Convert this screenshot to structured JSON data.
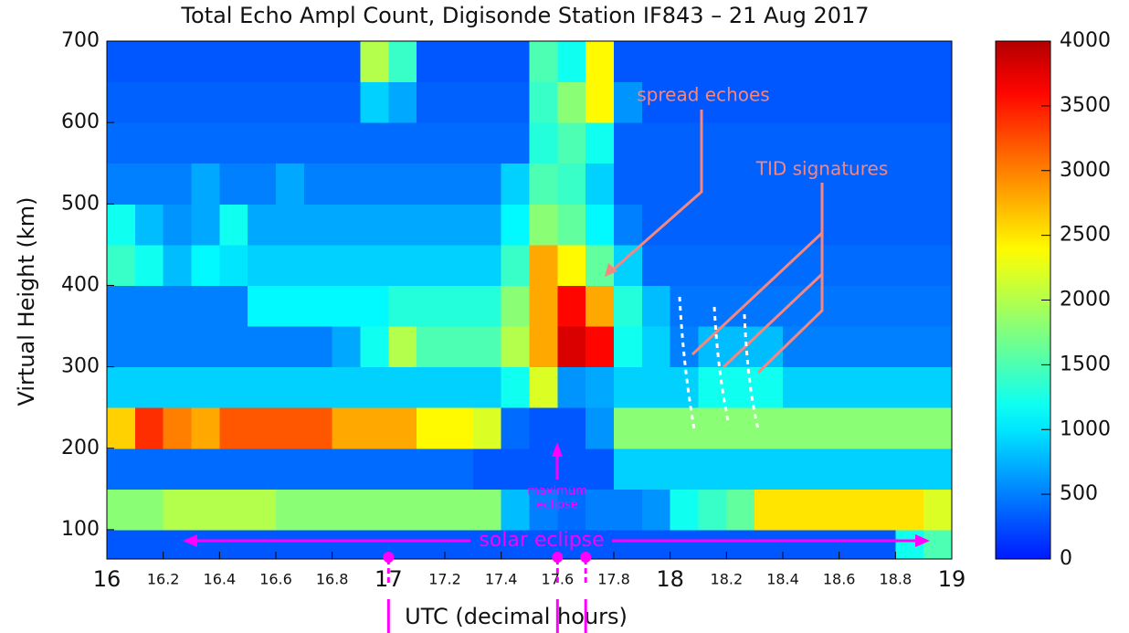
{
  "chart_data": {
    "type": "heatmap",
    "title": "Total Echo Ampl Count, Digisonde Station IF843 – 21 Aug 2017",
    "x_label": "UTC (decimal hours)",
    "y_label": "Virtual Height (km)",
    "x_bins": [
      16,
      16.1,
      16.2,
      16.3,
      16.4,
      16.5,
      16.6,
      16.7,
      16.8,
      16.9,
      17,
      17.1,
      17.2,
      17.3,
      17.4,
      17.5,
      17.6,
      17.7,
      17.8,
      17.9,
      18,
      18.1,
      18.2,
      18.3,
      18.4,
      18.5,
      18.6,
      18.7,
      18.8,
      18.9,
      19
    ],
    "y_bins": [
      64,
      100,
      150,
      200,
      250,
      300,
      350,
      400,
      450,
      500,
      550,
      600,
      650,
      700
    ],
    "values": [
      [
        300,
        300,
        300,
        300,
        300,
        300,
        300,
        300,
        300,
        300,
        300,
        300,
        300,
        300,
        300,
        300,
        300,
        300,
        300,
        300,
        300,
        300,
        300,
        300,
        300,
        300,
        300,
        300,
        1200,
        1500
      ],
      [
        1800,
        1800,
        2000,
        2000,
        2000,
        2000,
        1800,
        1800,
        1800,
        1800,
        1800,
        1800,
        1800,
        1800,
        800,
        500,
        400,
        500,
        500,
        600,
        1200,
        1400,
        1600,
        2500,
        2500,
        2500,
        2500,
        2500,
        2500,
        2200
      ],
      [
        400,
        400,
        400,
        400,
        400,
        400,
        400,
        400,
        400,
        400,
        400,
        400,
        400,
        300,
        300,
        300,
        300,
        300,
        900,
        900,
        900,
        900,
        900,
        900,
        900,
        900,
        900,
        900,
        900,
        900
      ],
      [
        2600,
        3400,
        3000,
        2800,
        3200,
        3200,
        3200,
        3200,
        2800,
        2800,
        2800,
        2400,
        2400,
        2200,
        400,
        300,
        300,
        600,
        1800,
        1800,
        1800,
        1800,
        1800,
        1800,
        1800,
        1800,
        1800,
        1800,
        1800,
        1800
      ],
      [
        900,
        900,
        900,
        900,
        900,
        900,
        900,
        900,
        900,
        900,
        900,
        900,
        900,
        900,
        1200,
        2200,
        600,
        700,
        900,
        900,
        900,
        1200,
        1200,
        1200,
        900,
        900,
        900,
        900,
        900,
        900
      ],
      [
        500,
        500,
        500,
        500,
        500,
        500,
        500,
        500,
        700,
        1200,
        2000,
        1500,
        1500,
        1500,
        2000,
        2800,
        3800,
        3600,
        1200,
        900,
        500,
        800,
        800,
        800,
        500,
        500,
        500,
        500,
        500,
        500
      ],
      [
        500,
        500,
        500,
        500,
        500,
        1100,
        1100,
        1100,
        1100,
        1100,
        1300,
        1300,
        1300,
        1300,
        1800,
        2800,
        3600,
        2800,
        1300,
        800,
        450,
        450,
        450,
        450,
        450,
        450,
        450,
        450,
        450,
        450
      ],
      [
        1400,
        1200,
        800,
        1100,
        1000,
        900,
        900,
        900,
        900,
        900,
        900,
        900,
        900,
        900,
        1400,
        2800,
        2400,
        1600,
        900,
        400,
        400,
        400,
        400,
        400,
        400,
        400,
        400,
        400,
        400,
        400
      ],
      [
        1200,
        800,
        600,
        700,
        1200,
        700,
        700,
        700,
        700,
        700,
        700,
        700,
        700,
        700,
        1100,
        1800,
        1600,
        1100,
        500,
        350,
        350,
        350,
        350,
        350,
        350,
        350,
        350,
        350,
        350,
        350
      ],
      [
        500,
        500,
        500,
        700,
        500,
        500,
        700,
        500,
        500,
        500,
        500,
        500,
        500,
        500,
        900,
        1500,
        1400,
        900,
        350,
        350,
        350,
        350,
        350,
        350,
        350,
        350,
        350,
        350,
        350,
        350
      ],
      [
        400,
        400,
        400,
        400,
        400,
        400,
        400,
        400,
        400,
        400,
        400,
        400,
        400,
        400,
        400,
        1300,
        1500,
        1200,
        350,
        350,
        350,
        350,
        350,
        350,
        350,
        350,
        350,
        350,
        350,
        350
      ],
      [
        350,
        350,
        350,
        350,
        350,
        350,
        350,
        350,
        350,
        900,
        700,
        350,
        350,
        350,
        350,
        1400,
        1800,
        2400,
        600,
        300,
        300,
        300,
        300,
        300,
        300,
        300,
        300,
        300,
        300,
        300
      ],
      [
        300,
        300,
        300,
        300,
        300,
        300,
        300,
        300,
        300,
        2000,
        1400,
        300,
        300,
        300,
        300,
        1500,
        1200,
        2400,
        300,
        300,
        300,
        300,
        300,
        300,
        300,
        300,
        300,
        300,
        300,
        300
      ]
    ],
    "colormap": "jet",
    "clim": [
      0,
      4000
    ],
    "cticks": [
      0,
      500,
      1000,
      1500,
      2000,
      2500,
      3000,
      3500,
      4000
    ],
    "xlim": [
      16,
      19
    ],
    "ylim": [
      64,
      700
    ],
    "xticks": [
      16,
      16.2,
      16.4,
      16.6,
      16.8,
      17,
      17.2,
      17.4,
      17.6,
      17.8,
      18,
      18.2,
      18.4,
      18.6,
      18.8,
      19
    ],
    "yticks": [
      100,
      200,
      300,
      400,
      500,
      600,
      700
    ],
    "markers": [
      17,
      17.6,
      17.7
    ],
    "annotations": [
      "spread echoes",
      "TID signatures",
      "maximum",
      "eclipse",
      "solar eclipse"
    ]
  }
}
